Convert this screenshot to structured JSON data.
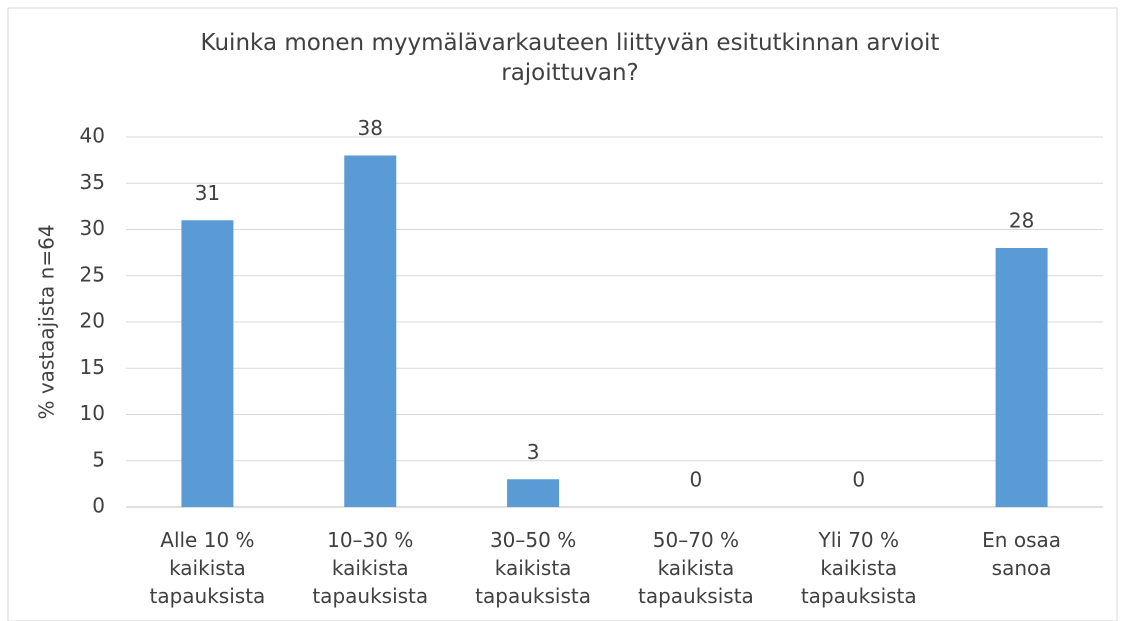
{
  "chart_data": {
    "type": "bar",
    "title": "Kuinka monen myymälävarkauteen liittyvän esitutkinnan arvioit rajoittuvan?",
    "y_label": "% vastaajista  n=64",
    "categories": [
      [
        "Alle 10 %",
        "kaikista",
        "tapauksista"
      ],
      [
        "10–30 %",
        "kaikista",
        "tapauksista"
      ],
      [
        "30–50 %",
        "kaikista",
        "tapauksista"
      ],
      [
        "50–70 %",
        "kaikista",
        "tapauksista"
      ],
      [
        "Yli 70 %",
        "kaikista",
        "tapauksista"
      ],
      [
        "En osaa",
        "sanoa"
      ]
    ],
    "values": [
      31,
      38,
      3,
      0,
      0,
      28
    ],
    "color": "#5b9bd5",
    "ylim": [
      0,
      40
    ],
    "yticks": [
      0,
      5,
      10,
      15,
      20,
      25,
      30,
      35,
      40
    ],
    "grid": true
  }
}
